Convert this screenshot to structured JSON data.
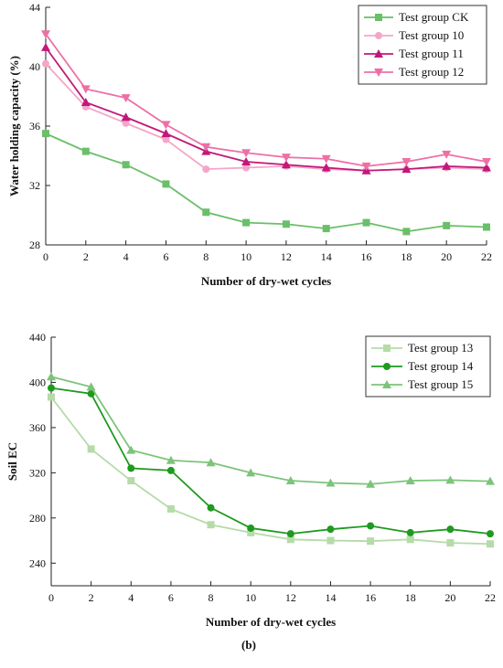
{
  "panel_label": "(b)",
  "chart_data": [
    {
      "type": "line",
      "xlabel": "Number of dry-wet cycles",
      "ylabel": "Water holding capacity (%)",
      "x": [
        0,
        2,
        4,
        6,
        8,
        10,
        12,
        14,
        16,
        18,
        20,
        22
      ],
      "xlim": [
        0,
        22
      ],
      "ylim": [
        28,
        44
      ],
      "yticks": [
        28,
        32,
        36,
        40,
        44
      ],
      "legend_position": "top-right",
      "grid": false,
      "series": [
        {
          "name": "Test group CK",
          "color": "#6abf69",
          "marker": "square",
          "values": [
            35.5,
            34.3,
            33.4,
            32.1,
            30.2,
            29.5,
            29.4,
            29.1,
            29.5,
            28.9,
            29.3,
            29.2
          ]
        },
        {
          "name": "Test group 10",
          "color": "#f4a6c8",
          "marker": "circle",
          "values": [
            40.2,
            37.3,
            36.2,
            35.1,
            33.1,
            33.2,
            33.3,
            33.1,
            33.0,
            33.1,
            33.2,
            33.1
          ]
        },
        {
          "name": "Test group 11",
          "color": "#c2187a",
          "marker": "triangle-up",
          "values": [
            41.3,
            37.6,
            36.6,
            35.5,
            34.3,
            33.6,
            33.4,
            33.2,
            33.0,
            33.1,
            33.3,
            33.2
          ]
        },
        {
          "name": "Test group 12",
          "color": "#ee6fa6",
          "marker": "triangle-down",
          "values": [
            42.2,
            38.5,
            37.9,
            36.1,
            34.6,
            34.2,
            33.9,
            33.8,
            33.3,
            33.6,
            34.1,
            33.6
          ]
        }
      ]
    },
    {
      "type": "line",
      "xlabel": "Number of dry-wet cycles",
      "ylabel": "Soil EC",
      "x": [
        0,
        2,
        4,
        6,
        8,
        10,
        12,
        14,
        16,
        18,
        20,
        22
      ],
      "xlim": [
        0,
        22
      ],
      "ylim": [
        220,
        440
      ],
      "yticks": [
        240,
        280,
        320,
        360,
        400,
        440
      ],
      "legend_position": "top-right",
      "grid": false,
      "series": [
        {
          "name": "Test group 13",
          "color": "#b5dba8",
          "marker": "square",
          "values": [
            387,
            341,
            313,
            288,
            274,
            267,
            261,
            260,
            259.5,
            261,
            258,
            257
          ]
        },
        {
          "name": "Test group 14",
          "color": "#1e9a1e",
          "marker": "circle",
          "values": [
            395,
            390,
            324,
            322,
            289,
            271,
            266,
            270,
            273,
            267,
            270,
            266
          ]
        },
        {
          "name": "Test group 15",
          "color": "#7cc47a",
          "marker": "triangle-up",
          "values": [
            405,
            396,
            340,
            331,
            329,
            320,
            313,
            311,
            310,
            313,
            313.5,
            312.5
          ]
        }
      ]
    }
  ]
}
